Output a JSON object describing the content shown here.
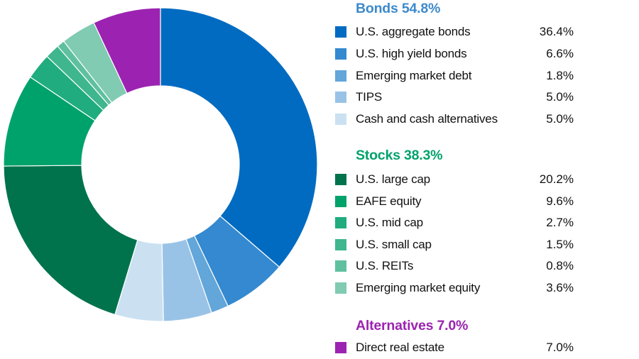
{
  "chart_data": {
    "type": "pie",
    "variant": "donut",
    "title": "",
    "center": [
      226,
      232
    ],
    "outer_radius": 221,
    "inner_radius": 111,
    "start_angle_deg": 0,
    "direction": "clockwise",
    "groups": [
      {
        "name": "Bonds",
        "total_label": "54.8%",
        "total": 54.8,
        "color": "#3d8acb",
        "items": [
          {
            "label": "U.S. aggregate bonds",
            "value": 36.4,
            "value_label": "36.4%",
            "color": "#006bc1"
          },
          {
            "label": "U.S. high yield bonds",
            "value": 6.6,
            "value_label": "6.6%",
            "color": "#3489d0"
          },
          {
            "label": "Emerging market debt",
            "value": 1.8,
            "value_label": "1.8%",
            "color": "#62a6da"
          },
          {
            "label": "TIPS",
            "value": 5.0,
            "value_label": "5.0%",
            "color": "#99c3e6"
          },
          {
            "label": "Cash and cash alternatives",
            "value": 5.0,
            "value_label": "5.0%",
            "color": "#cbe1f2"
          }
        ]
      },
      {
        "name": "Stocks",
        "total_label": "38.3%",
        "total": 38.3,
        "color": "#00a26b",
        "items": [
          {
            "label": "U.S. large cap",
            "value": 20.2,
            "value_label": "20.2%",
            "color": "#00734c"
          },
          {
            "label": "EAFE equity",
            "value": 9.6,
            "value_label": "9.6%",
            "color": "#00a26b"
          },
          {
            "label": "U.S. mid cap",
            "value": 2.7,
            "value_label": "2.7%",
            "color": "#20ac7e"
          },
          {
            "label": "U.S. small cap",
            "value": 1.5,
            "value_label": "1.5%",
            "color": "#40b68e"
          },
          {
            "label": "U.S. REITs",
            "value": 0.8,
            "value_label": "0.8%",
            "color": "#5fc09f"
          },
          {
            "label": "Emerging market equity",
            "value": 3.6,
            "value_label": "3.6%",
            "color": "#80cbb1"
          }
        ]
      },
      {
        "name": "Alternatives",
        "total_label": "7.0%",
        "total": 7.0,
        "color": "#9c23b1",
        "items": [
          {
            "label": "Direct real estate",
            "value": 7.0,
            "value_label": "7.0%",
            "color": "#9c23b1"
          }
        ]
      }
    ],
    "legend_position": "right"
  }
}
